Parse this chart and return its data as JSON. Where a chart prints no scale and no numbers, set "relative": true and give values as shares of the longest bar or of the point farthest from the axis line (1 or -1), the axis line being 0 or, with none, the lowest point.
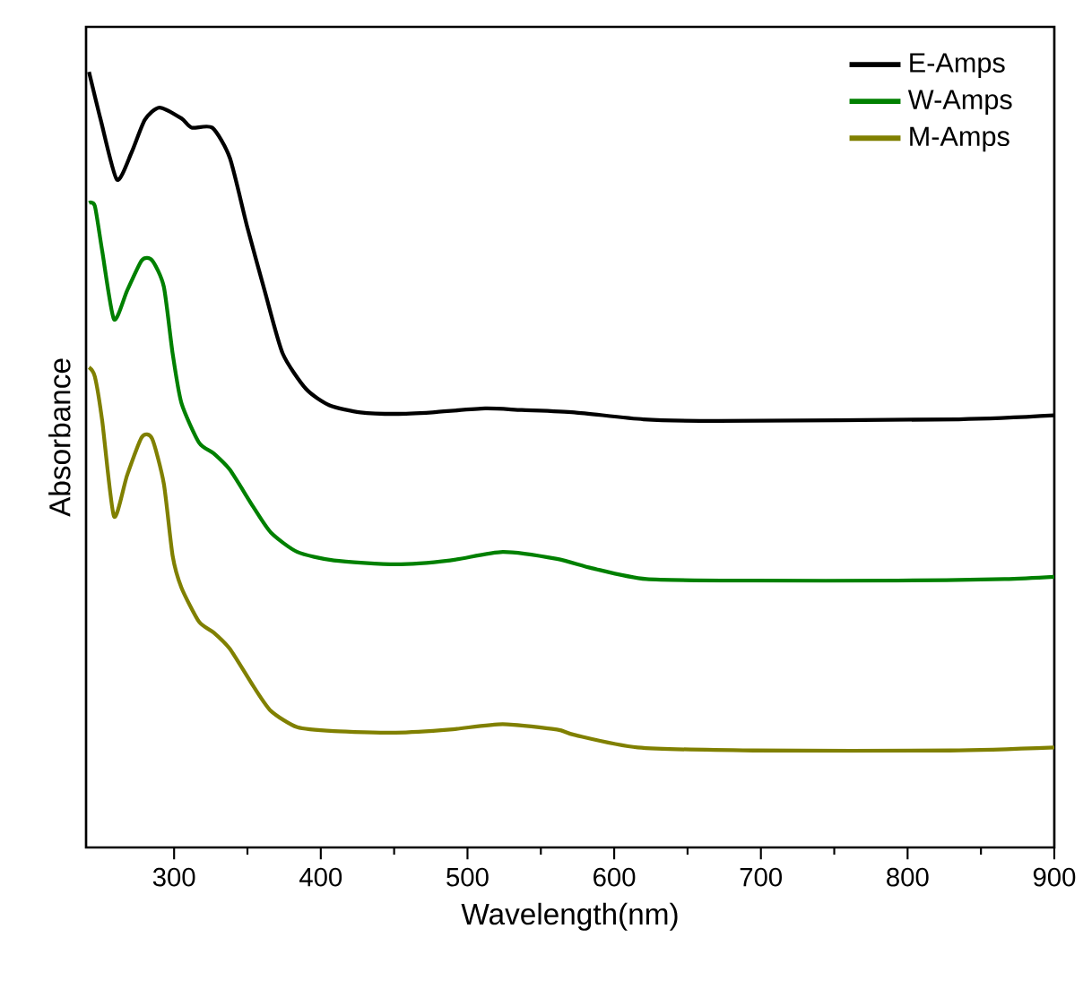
{
  "chart_data": {
    "type": "line",
    "xlabel": "Wavelength(nm)",
    "ylabel": "Absorbance",
    "relative": true,
    "xlim": [
      240,
      900
    ],
    "xticks": [
      300,
      400,
      500,
      600,
      700,
      800,
      900
    ],
    "legend": "top right",
    "grid": false,
    "marker": "none",
    "line_style": "solid",
    "series": [
      {
        "name": "E-Amps",
        "color": "#000000",
        "x": [
          242,
          250,
          261,
          271,
          280,
          290,
          305,
          312,
          326,
          338,
          350,
          362,
          374,
          390,
          406,
          427,
          451,
          476,
          512,
          537,
          573,
          620,
          671,
          835,
          900
        ],
        "values": [
          1.0,
          0.938,
          0.861,
          0.896,
          0.938,
          0.954,
          0.94,
          0.928,
          0.928,
          0.889,
          0.799,
          0.716,
          0.637,
          0.591,
          0.57,
          0.561,
          0.559,
          0.561,
          0.566,
          0.564,
          0.561,
          0.552,
          0.55,
          0.552,
          0.557
        ]
      },
      {
        "name": "W-Amps",
        "color": "#008000",
        "x": [
          242,
          246,
          251,
          259,
          268,
          278,
          285,
          293,
          299,
          305,
          317,
          327,
          338,
          354,
          366,
          384,
          409,
          451,
          488,
          524,
          561,
          585,
          622,
          695,
          793,
          866,
          900
        ],
        "values": [
          0.831,
          0.827,
          0.769,
          0.681,
          0.718,
          0.757,
          0.757,
          0.723,
          0.637,
          0.573,
          0.522,
          0.508,
          0.487,
          0.439,
          0.406,
          0.381,
          0.37,
          0.365,
          0.37,
          0.381,
          0.372,
          0.36,
          0.346,
          0.344,
          0.344,
          0.346,
          0.349
        ]
      },
      {
        "name": "M-Amps",
        "color": "#808000",
        "x": [
          242,
          246,
          251,
          259,
          268,
          278,
          285,
          293,
          299,
          305,
          317,
          327,
          338,
          354,
          366,
          384,
          409,
          451,
          488,
          524,
          561,
          573,
          616,
          695,
          829,
          900
        ],
        "values": [
          0.619,
          0.607,
          0.55,
          0.427,
          0.48,
          0.529,
          0.527,
          0.469,
          0.376,
          0.335,
          0.291,
          0.277,
          0.256,
          0.208,
          0.176,
          0.155,
          0.15,
          0.148,
          0.152,
          0.159,
          0.152,
          0.145,
          0.129,
          0.125,
          0.125,
          0.129
        ]
      }
    ]
  }
}
